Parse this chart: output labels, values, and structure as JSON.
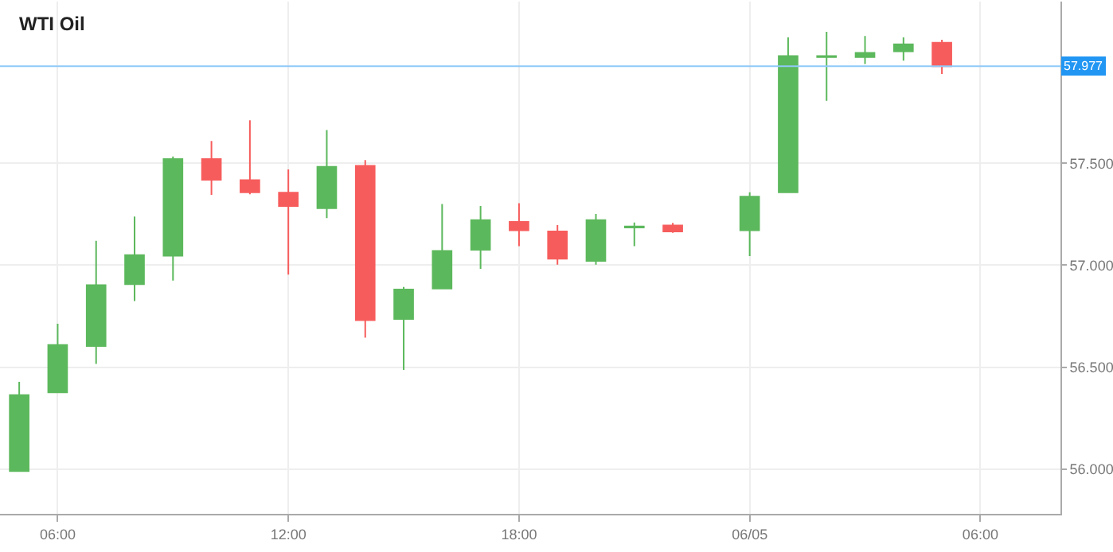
{
  "chart_data": {
    "type": "candlestick",
    "title": "WTI Oil",
    "x": [
      "--06-04T05:00",
      "--06-04T06:00",
      "--06-04T07:00",
      "--06-04T08:00",
      "--06-04T09:00",
      "--06-04T10:00",
      "--06-04T11:00",
      "--06-04T12:00",
      "--06-04T13:00",
      "--06-04T14:00",
      "--06-04T15:00",
      "--06-04T16:00",
      "--06-04T17:00",
      "--06-04T18:00",
      "--06-04T19:00",
      "--06-04T20:00",
      "--06-04T21:00",
      "--06-04T22:00",
      "--06-05T00:00",
      "--06-05T01:00",
      "--06-05T02:00",
      "--06-05T03:00",
      "--06-05T04:00",
      "--06-05T05:00"
    ],
    "ohlc": [
      [
        55.99,
        56.428,
        55.99,
        56.363
      ],
      [
        56.376,
        56.713,
        56.376,
        56.609
      ],
      [
        56.604,
        57.12,
        56.516,
        56.902
      ],
      [
        56.907,
        57.239,
        56.824,
        57.05
      ],
      [
        57.047,
        57.534,
        56.925,
        57.521
      ],
      [
        57.521,
        57.61,
        57.345,
        57.42
      ],
      [
        57.418,
        57.711,
        57.348,
        57.358
      ],
      [
        57.356,
        57.47,
        56.954,
        57.291
      ],
      [
        57.28,
        57.664,
        57.231,
        57.483
      ],
      [
        57.488,
        57.516,
        56.645,
        56.731
      ],
      [
        56.736,
        56.894,
        56.487,
        56.881
      ],
      [
        56.886,
        57.301,
        56.886,
        57.07
      ],
      [
        57.076,
        57.291,
        56.982,
        57.221
      ],
      [
        57.213,
        57.304,
        57.094,
        57.172
      ],
      [
        57.166,
        57.197,
        57.003,
        57.032
      ],
      [
        57.021,
        57.252,
        57.003,
        57.221
      ],
      [
        57.185,
        57.21,
        57.094,
        57.19
      ],
      [
        57.195,
        57.208,
        57.159,
        57.166
      ],
      [
        57.172,
        57.358,
        57.045,
        57.337
      ],
      [
        57.358,
        58.118,
        57.358,
        58.027
      ],
      [
        58.022,
        58.146,
        57.807,
        58.027
      ],
      [
        58.022,
        58.125,
        57.988,
        58.042
      ],
      [
        58.05,
        58.118,
        58.004,
        58.084
      ],
      [
        58.092,
        58.107,
        57.939,
        57.977
      ]
    ],
    "colors": [
      "#5cb85c",
      "#5cb85c",
      "#5cb85c",
      "#5cb85c",
      "#5cb85c",
      "#f75c5c",
      "#f75c5c",
      "#f75c5c",
      "#5cb85c",
      "#f75c5c",
      "#5cb85c",
      "#5cb85c",
      "#5cb85c",
      "#f75c5c",
      "#f75c5c",
      "#5cb85c",
      "#5cb85c",
      "#f75c5c",
      "#5cb85c",
      "#5cb85c",
      "#5cb85c",
      "#5cb85c",
      "#5cb85c",
      "#f75c5c"
    ],
    "xlim": [
      "--06-04T04:30",
      "--06-05T08:05"
    ],
    "xticks": [
      {
        "value": "--06-04T06:00",
        "label": "06:00"
      },
      {
        "value": "--06-04T12:00",
        "label": "12:00"
      },
      {
        "value": "--06-04T18:00",
        "label": "18:00"
      },
      {
        "value": "--06-05T00:00",
        "label": "06/05"
      },
      {
        "value": "--06-05T06:00",
        "label": "06:00"
      }
    ],
    "ylim": [
      55.78,
      58.294
    ],
    "yticks": [
      {
        "value": 56,
        "label": "56.000"
      },
      {
        "value": 56.5,
        "label": "56.500"
      },
      {
        "value": 57,
        "label": "57.000"
      },
      {
        "value": 57.5,
        "label": "57.500"
      }
    ],
    "ref_lines": [
      {
        "axis": "y",
        "value": 57.977,
        "label": "57.977",
        "color": "#90caf9"
      }
    ],
    "grid": true,
    "legend": false
  }
}
